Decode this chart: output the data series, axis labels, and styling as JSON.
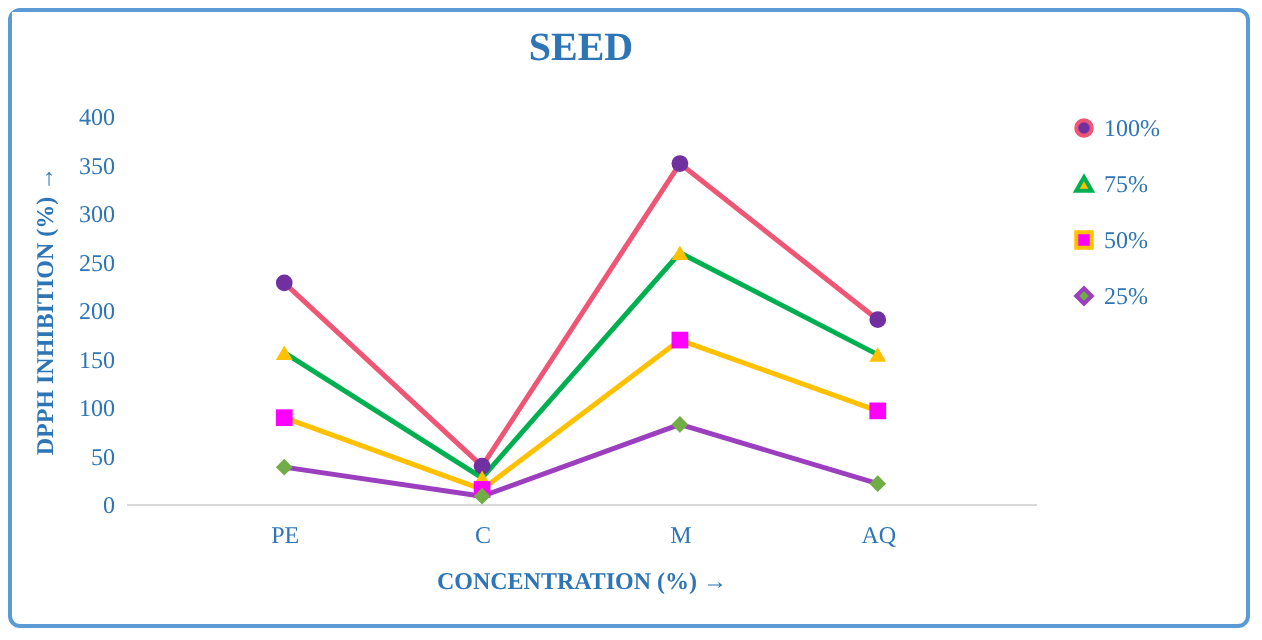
{
  "chart_data": {
    "type": "line",
    "title": "SEED",
    "xlabel": "CONCENTRATION (%) →",
    "ylabel": "DPPH INHIBITION (%) →",
    "categories": [
      "PE",
      "C",
      "M",
      "AQ"
    ],
    "series": [
      {
        "name": "100%",
        "color": "#ef5675",
        "colors": [
          "#7030a0",
          "#7030a0",
          "#7030a0",
          "#7030a0"
        ],
        "marker": "circle",
        "values": [
          228,
          39,
          351,
          190
        ]
      },
      {
        "name": "75%",
        "color": "#00b050",
        "colors": [
          "#ffc000",
          "#ffc000",
          "#ffc000",
          "#ffc000"
        ],
        "marker": "triangle",
        "values": [
          156,
          27,
          259,
          154
        ]
      },
      {
        "name": "50%",
        "color": "#ffc000",
        "colors": [
          "#ff00ff",
          "#ff00ff",
          "#ff00ff",
          "#ff00ff"
        ],
        "marker": "square",
        "values": [
          89,
          15,
          169,
          96
        ]
      },
      {
        "name": "25%",
        "color": "#9b3fbf",
        "colors": [
          "#70ad47",
          "#70ad47",
          "#70ad47",
          "#70ad47"
        ],
        "marker": "diamond",
        "values": [
          38,
          8,
          82,
          21
        ]
      }
    ],
    "ylim": [
      0,
      400
    ],
    "yticks": [
      0,
      50,
      100,
      150,
      200,
      250,
      300,
      350,
      400
    ],
    "grid": false,
    "legend": "right",
    "line_style": "solid"
  }
}
